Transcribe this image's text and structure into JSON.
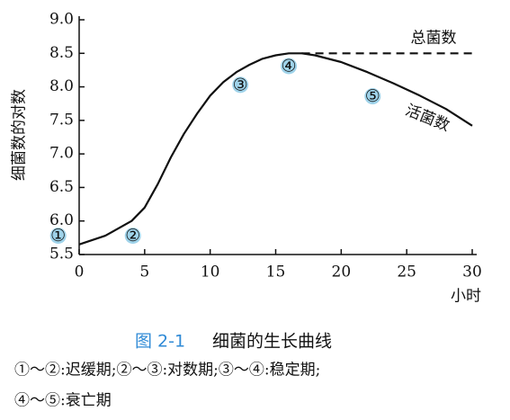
{
  "chart_data": {
    "type": "line",
    "ylabel": "细菌数的对数",
    "xlabel": "小时",
    "xlim": [
      0,
      30
    ],
    "xticks": [
      0,
      5,
      10,
      15,
      20,
      25,
      30
    ],
    "ylim": [
      5.5,
      9.0
    ],
    "yticks": [
      5.5,
      {
        "value": 6,
        "label": "6.0"
      },
      6.5,
      {
        "value": 7,
        "label": "7.0"
      },
      7.5,
      {
        "value": 8,
        "label": "8.0"
      },
      8.5,
      {
        "value": 9,
        "label": "9.0"
      }
    ],
    "grid": false,
    "series": [
      {
        "name": "活菌数",
        "color": "#111111",
        "dash": false,
        "x": [
          0,
          2,
          4,
          5,
          6,
          7,
          8,
          9,
          10,
          11,
          12,
          13,
          14,
          15,
          16,
          17,
          18,
          20,
          22,
          24,
          26,
          28,
          30
        ],
        "values": [
          5.65,
          5.78,
          6.0,
          6.2,
          6.55,
          6.95,
          7.3,
          7.6,
          7.87,
          8.07,
          8.22,
          8.33,
          8.42,
          8.47,
          8.5,
          8.5,
          8.47,
          8.37,
          8.22,
          8.05,
          7.87,
          7.67,
          7.42
        ]
      },
      {
        "name": "总菌数",
        "color": "#111111",
        "dash": true,
        "x": [
          17,
          30
        ],
        "values": [
          8.5,
          8.5
        ]
      }
    ],
    "annotations": [
      {
        "text": "①",
        "x": -1.6,
        "y": 5.78
      },
      {
        "text": "②",
        "x": 4.1,
        "y": 5.78
      },
      {
        "text": "③",
        "x": 12.3,
        "y": 8.03
      },
      {
        "text": "④",
        "x": 16.0,
        "y": 8.31
      },
      {
        "text": "⑤",
        "x": 22.4,
        "y": 7.86
      }
    ],
    "caption": {
      "number": "图 2-1",
      "title": "细菌的生长曲线"
    },
    "notes": [
      "①～②:迟缓期;②～③:对数期;③～④:稳定期;",
      "④～⑤:衰亡期"
    ]
  }
}
